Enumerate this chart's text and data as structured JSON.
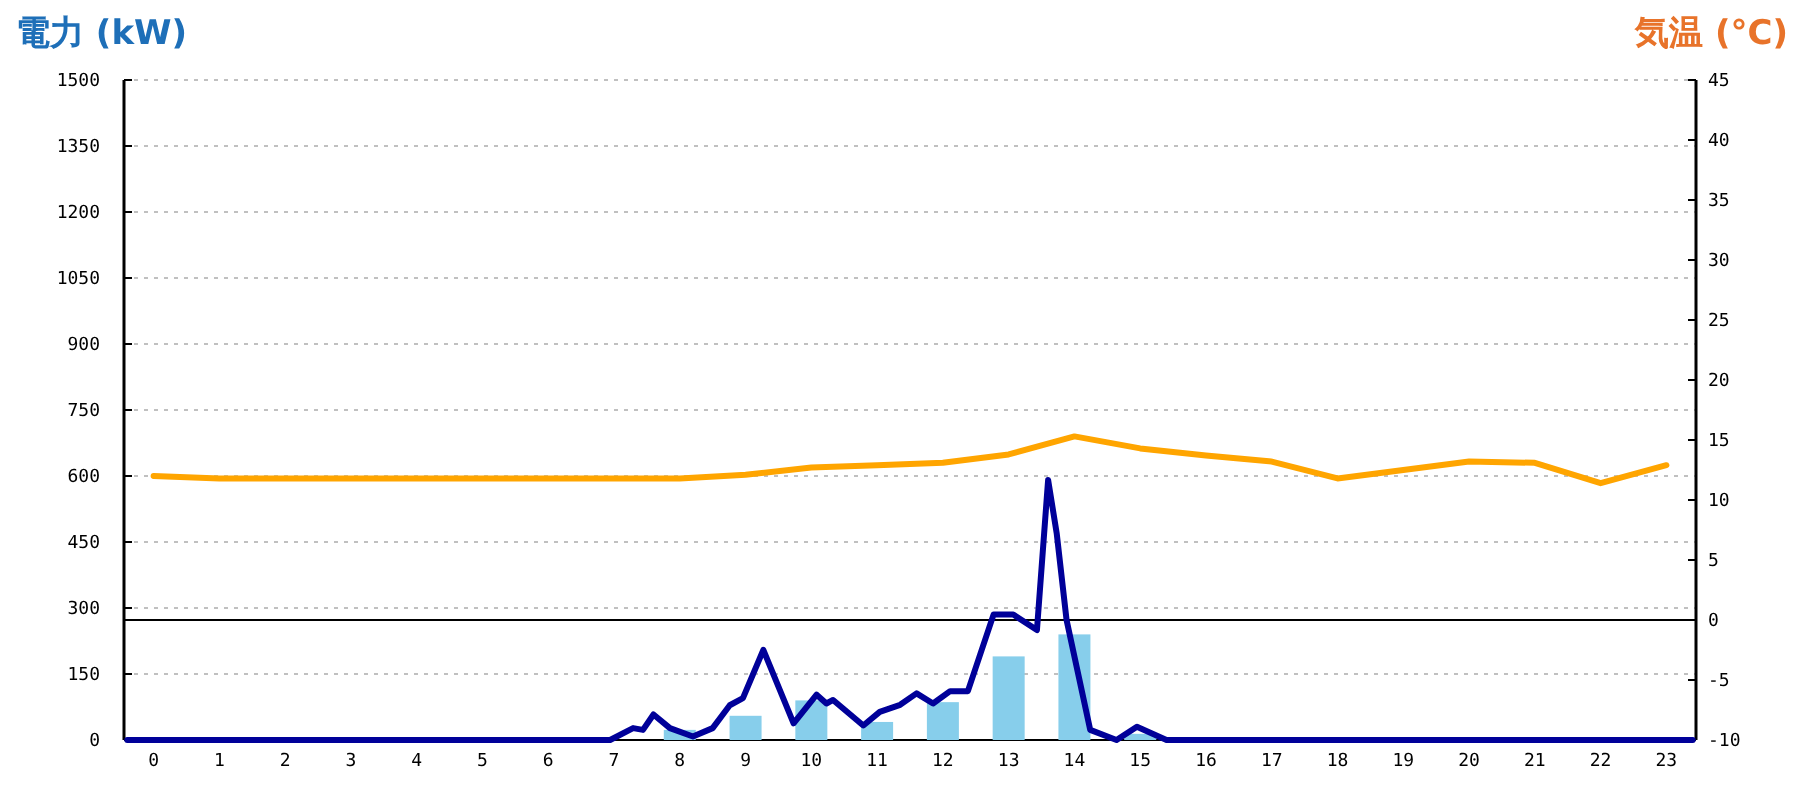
{
  "chart_data": {
    "type": "bar",
    "ylabel": "電力 (kW)",
    "y2label": "気温 (°C)",
    "xlim": [
      -0.45,
      23.45
    ],
    "xticks": [
      0,
      1,
      2,
      3,
      4,
      5,
      6,
      7,
      8,
      9,
      10,
      11,
      12,
      13,
      14,
      15,
      16,
      17,
      18,
      19,
      20,
      21,
      22,
      23
    ],
    "ylim": [
      0,
      1500
    ],
    "yticks": [
      0,
      150,
      300,
      450,
      600,
      750,
      900,
      1050,
      1200,
      1350,
      1500
    ],
    "y2lim": [
      -10,
      45
    ],
    "y2ticks": [
      -10,
      -5,
      0,
      5,
      10,
      15,
      20,
      25,
      30,
      35,
      40,
      45
    ],
    "grid": "y",
    "ref_lines": [
      {
        "axis": "y2",
        "value": 0,
        "color": "#000000"
      }
    ],
    "series": [
      {
        "color": "#87ceeb",
        "x": [
          0,
          1,
          2,
          3,
          4,
          5,
          6,
          7,
          8,
          9,
          10,
          11,
          12,
          13,
          14,
          15,
          16,
          17,
          18,
          19,
          20,
          21,
          22,
          23
        ],
        "values": [
          0,
          0,
          0,
          0,
          0,
          0,
          0,
          0,
          23,
          55,
          90,
          41,
          86,
          190,
          240,
          14,
          0,
          0,
          0,
          0,
          0,
          0,
          0,
          0
        ]
      },
      {
        "type": "line",
        "color": "#000099",
        "x": [
          -0.4,
          3,
          6.94,
          7.29,
          7.44,
          7.6,
          7.85,
          8.2,
          8.5,
          8.76,
          8.96,
          9.27,
          9.73,
          10.08,
          10.23,
          10.33,
          10.79,
          11.04,
          11.35,
          11.6,
          11.85,
          12.11,
          12.38,
          12.77,
          13.07,
          13.43,
          13.6,
          13.73,
          13.88,
          14.24,
          14.64,
          14.95,
          15.4,
          19,
          23.4
        ],
        "values": [
          0,
          0,
          0,
          27,
          23,
          58,
          27,
          8,
          27,
          79,
          95,
          205,
          38,
          103,
          83,
          91,
          33,
          64,
          80,
          106,
          83,
          111,
          111,
          285,
          285,
          250,
          591,
          470,
          273,
          23,
          0,
          30,
          0,
          0,
          0
        ]
      },
      {
        "type": "line",
        "axis": "y2",
        "color": "#ffa500",
        "x": [
          0,
          1,
          2,
          3,
          4,
          5,
          6,
          7,
          8,
          9,
          10,
          11,
          12,
          13,
          14,
          15,
          16,
          17,
          18,
          19,
          20,
          21,
          22,
          23
        ],
        "values": [
          12.0,
          11.8,
          11.8,
          11.8,
          11.8,
          11.8,
          11.8,
          11.8,
          11.8,
          12.1,
          12.7,
          12.9,
          13.1,
          13.8,
          15.3,
          14.3,
          13.7,
          13.2,
          11.8,
          12.5,
          13.2,
          13.1,
          11.4,
          12.9
        ]
      }
    ]
  }
}
